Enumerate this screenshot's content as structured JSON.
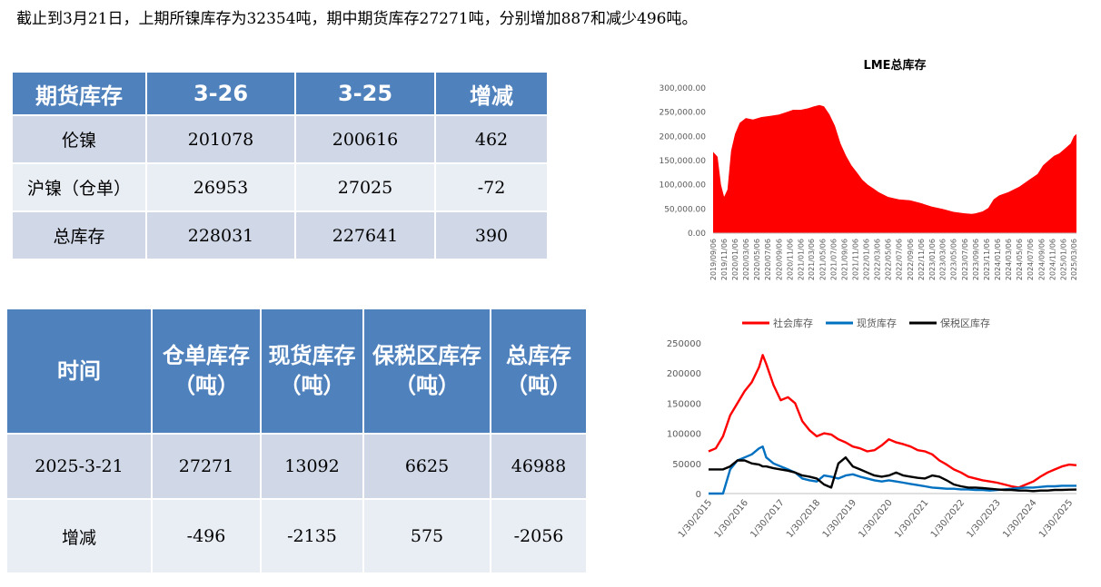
{
  "headline": "截止到3月21日，上期所镍库存为32354吨，期中期货库存27271吨，分别增加887和减少496吨。",
  "table1": {
    "headers": [
      "期货库存",
      "3-26",
      "3-25",
      "增减"
    ],
    "rows": [
      [
        "伦镍",
        "201078",
        "200616",
        "462"
      ],
      [
        "沪镍（仓单）",
        "26953",
        "27025",
        "-72"
      ],
      [
        "总库存",
        "228031",
        "227641",
        "390"
      ]
    ]
  },
  "table2": {
    "headers": [
      "时间",
      "仓单库存（吨）",
      "现货库存（吨）",
      "保税区库存（吨）",
      "总库存（吨）"
    ],
    "rows": [
      [
        "2025-3-21",
        "27271",
        "13092",
        "6625",
        "46988"
      ],
      [
        "增减",
        "-496",
        "-2135",
        "575",
        "-2056"
      ]
    ]
  },
  "chart_data": [
    {
      "type": "area",
      "title": "LME总库存",
      "color": "#ff0000",
      "ylim": [
        0,
        300000
      ],
      "yticks": [
        "0.00",
        "50,000.00",
        "100,000.00",
        "150,000.00",
        "200,000.00",
        "250,000.00",
        "300,000.00"
      ],
      "xticks": [
        "2019/09/06",
        "2019/11/06",
        "2020/01/06",
        "2020/03/06",
        "2020/05/06",
        "2020/07/06",
        "2020/09/06",
        "2020/11/06",
        "2021/01/06",
        "2021/03/06",
        "2021/05/06",
        "2021/07/06",
        "2021/09/06",
        "2021/11/06",
        "2022/01/06",
        "2022/03/06",
        "2022/05/06",
        "2022/07/06",
        "2022/09/06",
        "2022/11/06",
        "2023/01/06",
        "2023/03/06",
        "2023/05/06",
        "2023/07/06",
        "2023/09/06",
        "2023/11/06",
        "2024/01/06",
        "2024/03/06",
        "2024/05/06",
        "2024/07/06",
        "2024/09/06",
        "2024/11/06",
        "2025/01/06",
        "2025/03/06"
      ],
      "x": [
        "2019-09-06",
        "2019-10-01",
        "2019-10-20",
        "2019-11-06",
        "2019-11-25",
        "2019-12-15",
        "2020-01-06",
        "2020-02-01",
        "2020-03-06",
        "2020-04-15",
        "2020-06-01",
        "2020-07-15",
        "2020-09-06",
        "2020-10-15",
        "2020-11-25",
        "2021-01-06",
        "2021-02-15",
        "2021-03-20",
        "2021-04-20",
        "2021-05-15",
        "2021-06-15",
        "2021-07-15",
        "2021-08-15",
        "2021-09-15",
        "2021-10-15",
        "2021-11-15",
        "2021-12-15",
        "2022-01-15",
        "2022-02-15",
        "2022-03-15",
        "2022-05-06",
        "2022-07-06",
        "2022-09-06",
        "2022-11-06",
        "2023-01-06",
        "2023-03-06",
        "2023-05-06",
        "2023-07-06",
        "2023-08-15",
        "2023-09-06",
        "2023-10-15",
        "2023-11-15",
        "2023-12-15",
        "2024-01-15",
        "2024-03-06",
        "2024-05-06",
        "2024-07-06",
        "2024-08-15",
        "2024-09-15",
        "2024-10-15",
        "2024-11-15",
        "2024-12-15",
        "2025-01-15",
        "2025-02-15",
        "2025-03-06",
        "2025-03-20"
      ],
      "y": [
        168000,
        158000,
        100000,
        75000,
        90000,
        170000,
        205000,
        228000,
        238000,
        235000,
        240000,
        242000,
        245000,
        250000,
        255000,
        255000,
        258000,
        262000,
        265000,
        262000,
        245000,
        222000,
        185000,
        160000,
        140000,
        125000,
        110000,
        100000,
        92000,
        85000,
        75000,
        70000,
        68000,
        62000,
        55000,
        50000,
        44000,
        41000,
        40000,
        41000,
        45000,
        52000,
        70000,
        78000,
        85000,
        96000,
        112000,
        122000,
        140000,
        150000,
        160000,
        165000,
        175000,
        185000,
        200000,
        205000
      ]
    },
    {
      "type": "line",
      "ylim": [
        0,
        250000
      ],
      "yticks": [
        "0",
        "50000",
        "100000",
        "150000",
        "200000",
        "250000"
      ],
      "xticks": [
        "1/30/2015",
        "1/30/2016",
        "1/30/2017",
        "1/30/2018",
        "1/30/2019",
        "1/30/2020",
        "1/30/2021",
        "1/30/2022",
        "1/30/2023",
        "1/30/2024",
        "1/30/2025"
      ],
      "x": [
        2015.0,
        2015.2,
        2015.4,
        2015.6,
        2015.8,
        2016.0,
        2016.2,
        2016.4,
        2016.5,
        2016.6,
        2016.8,
        2017.0,
        2017.2,
        2017.4,
        2017.6,
        2017.8,
        2018.0,
        2018.2,
        2018.4,
        2018.6,
        2018.8,
        2019.0,
        2019.2,
        2019.4,
        2019.6,
        2019.8,
        2020.0,
        2020.2,
        2020.4,
        2020.6,
        2020.8,
        2021.0,
        2021.2,
        2021.4,
        2021.6,
        2021.8,
        2022.0,
        2022.2,
        2022.4,
        2022.6,
        2022.8,
        2023.0,
        2023.2,
        2023.4,
        2023.6,
        2023.8,
        2024.0,
        2024.2,
        2024.4,
        2024.6,
        2024.8,
        2025.0,
        2025.2
      ],
      "series": [
        {
          "name": "社会库存",
          "color": "#ff0000",
          "values": [
            70000,
            75000,
            95000,
            130000,
            150000,
            170000,
            185000,
            210000,
            230000,
            215000,
            180000,
            155000,
            160000,
            150000,
            120000,
            105000,
            95000,
            100000,
            98000,
            90000,
            85000,
            78000,
            75000,
            70000,
            72000,
            80000,
            90000,
            85000,
            82000,
            78000,
            72000,
            70000,
            65000,
            55000,
            48000,
            40000,
            35000,
            28000,
            25000,
            22000,
            20000,
            18000,
            15000,
            12000,
            10000,
            15000,
            20000,
            28000,
            35000,
            40000,
            45000,
            48000,
            47000
          ]
        },
        {
          "name": "现货库存",
          "color": "#0070c0",
          "values": [
            0,
            0,
            0,
            40000,
            55000,
            60000,
            65000,
            75000,
            78000,
            60000,
            50000,
            45000,
            40000,
            35000,
            25000,
            22000,
            20000,
            30000,
            28000,
            25000,
            30000,
            32000,
            28000,
            25000,
            22000,
            20000,
            22000,
            20000,
            18000,
            16000,
            14000,
            12000,
            10000,
            9000,
            8000,
            8000,
            7000,
            7000,
            6000,
            6000,
            5000,
            6000,
            7000,
            8000,
            9000,
            10000,
            10000,
            11000,
            12000,
            12000,
            13000,
            13000,
            13000
          ]
        },
        {
          "name": "保税区库存",
          "color": "#000000",
          "values": [
            40000,
            40000,
            40000,
            45000,
            55000,
            55000,
            50000,
            48000,
            45000,
            45000,
            42000,
            40000,
            38000,
            35000,
            30000,
            28000,
            25000,
            15000,
            10000,
            50000,
            60000,
            45000,
            40000,
            35000,
            30000,
            28000,
            30000,
            35000,
            30000,
            28000,
            26000,
            25000,
            30000,
            28000,
            22000,
            15000,
            12000,
            10000,
            10000,
            9000,
            8000,
            7000,
            6000,
            6000,
            5000,
            5000,
            4000,
            5000,
            5000,
            6000,
            6000,
            6500,
            6600
          ]
        }
      ]
    }
  ]
}
